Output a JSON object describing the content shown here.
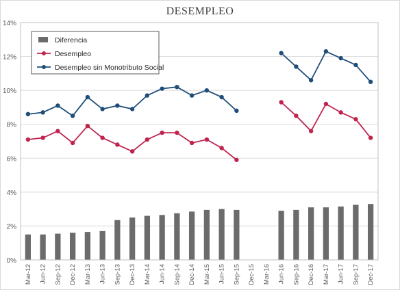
{
  "chart_data": {
    "type": "bar+line",
    "title": "DESEMPLEO",
    "categories": [
      "Mar-12",
      "Jun-12",
      "Sep-12",
      "Dec-12",
      "Mar-13",
      "Jun-13",
      "Sep-13",
      "Dec-13",
      "Mar-14",
      "Jun-14",
      "Sep-14",
      "Dec-14",
      "Mar-15",
      "Jun-15",
      "Sep-15",
      "Dec-15",
      "Mar-16",
      "Jun-16",
      "Sep-16",
      "Dec-16",
      "Mar-17",
      "Jun-17",
      "Sep-17",
      "Dec-17"
    ],
    "ylim": [
      0,
      14
    ],
    "yticks": [
      "0%",
      "2%",
      "4%",
      "6%",
      "8%",
      "10%",
      "12%",
      "14%"
    ],
    "series": [
      {
        "name": "Diferencia",
        "type": "bar",
        "color": "#6b6b6b",
        "values": [
          1.5,
          1.5,
          1.55,
          1.6,
          1.65,
          1.7,
          2.35,
          2.5,
          2.6,
          2.65,
          2.75,
          2.85,
          2.95,
          3.0,
          2.95,
          null,
          null,
          2.9,
          2.95,
          3.1,
          3.1,
          3.15,
          3.25,
          3.3
        ]
      },
      {
        "name": "Desempleo",
        "type": "line",
        "color": "#c0244e",
        "values": [
          7.1,
          7.2,
          7.6,
          6.9,
          7.9,
          7.2,
          6.8,
          6.4,
          7.1,
          7.5,
          7.5,
          6.9,
          7.1,
          6.6,
          5.9,
          null,
          null,
          9.3,
          8.5,
          7.6,
          9.2,
          8.7,
          8.3,
          7.2
        ]
      },
      {
        "name": "Desempleo sin Monotributo Social",
        "type": "line",
        "color": "#1f4e79",
        "values": [
          8.6,
          8.7,
          9.1,
          8.5,
          9.6,
          8.9,
          9.1,
          8.9,
          9.7,
          10.1,
          10.2,
          9.7,
          10.0,
          9.6,
          8.8,
          null,
          null,
          12.2,
          11.4,
          10.6,
          12.3,
          11.9,
          11.5,
          10.5
        ]
      }
    ],
    "grid": true,
    "legend_position": "top-left"
  }
}
